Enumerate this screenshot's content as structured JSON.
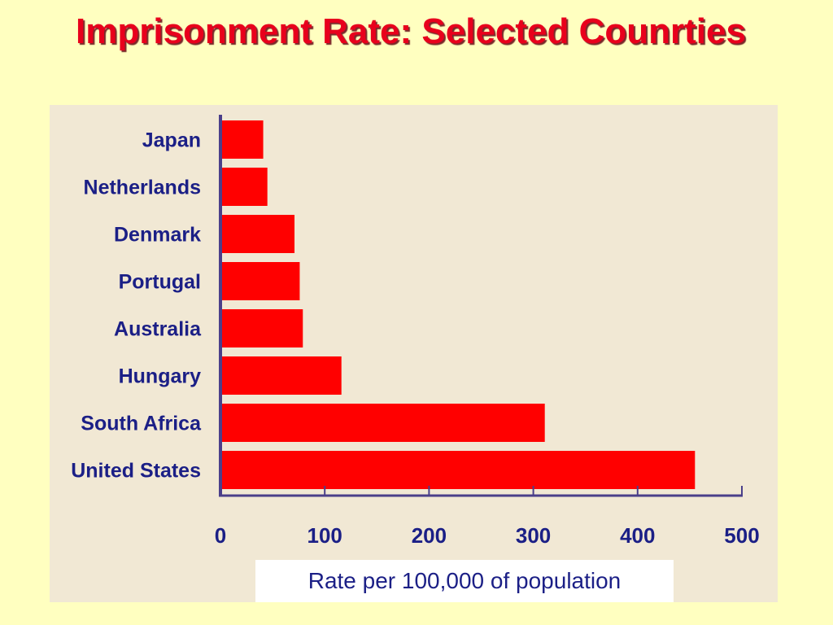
{
  "slide": {
    "title": "Imprisonment Rate: Selected Counrties"
  },
  "colors": {
    "background": "#ffffc0",
    "panel": "#f1e8d4",
    "bar": "#ff0000",
    "axis": "#4a3f8a",
    "text": "#1b1f86",
    "title": "#e8001c"
  },
  "chart_data": {
    "type": "bar",
    "orientation": "horizontal",
    "title": "Imprisonment Rate: Selected Counrties",
    "xlabel": "Rate per 100,000 of population",
    "ylabel": "",
    "categories": [
      "Japan",
      "Netherlands",
      "Denmark",
      "Portugal",
      "Australia",
      "Hungary",
      "South Africa",
      "United States"
    ],
    "values": [
      41,
      45,
      71,
      76,
      79,
      116,
      311,
      455
    ],
    "xlim": [
      0,
      500
    ],
    "xticks": [
      0,
      100,
      200,
      300,
      400,
      500
    ],
    "xtick_labels": [
      "0",
      "100",
      "200",
      "300",
      "400",
      "500"
    ],
    "grid": false,
    "legend": "none"
  }
}
